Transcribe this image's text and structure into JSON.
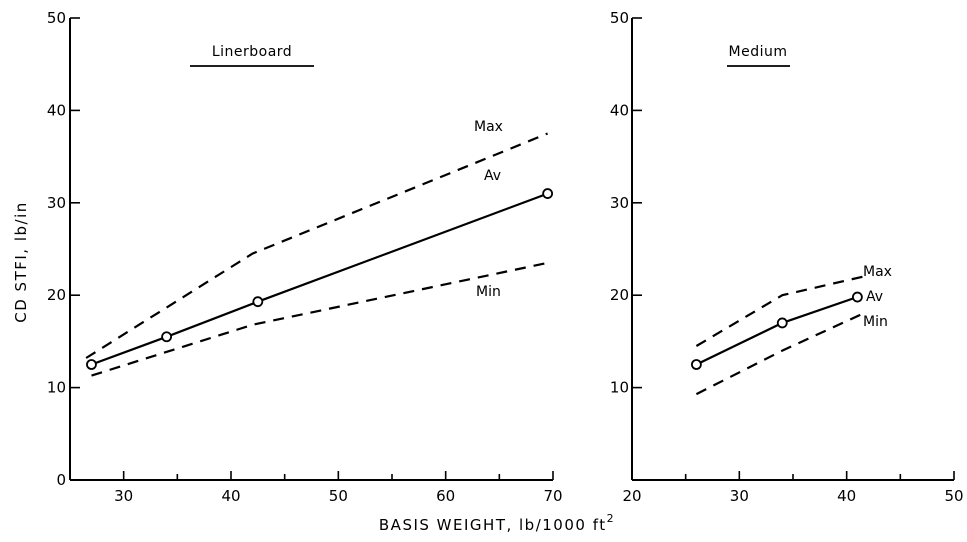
{
  "chart_data": [
    {
      "type": "line",
      "title": "Linerboard",
      "xlabel": "BASIS WEIGHT,  lb/1000 ft²",
      "ylabel": "CD STFI,  lb/in",
      "xlim": [
        25,
        70
      ],
      "ylim": [
        0,
        50
      ],
      "xticks": [
        30,
        40,
        50,
        60,
        70
      ],
      "yticks": [
        0,
        10,
        20,
        30,
        40,
        50
      ],
      "grid": false,
      "series": [
        {
          "name": "Max",
          "style": "dashed",
          "markers": false,
          "x": [
            26.5,
            42,
            69.5
          ],
          "y": [
            13.2,
            24.5,
            37.5
          ]
        },
        {
          "name": "Av",
          "style": "solid",
          "markers": true,
          "x": [
            27,
            34,
            42.5,
            69.5
          ],
          "y": [
            12.5,
            15.5,
            19.3,
            31.0
          ]
        },
        {
          "name": "Min",
          "style": "dashed",
          "markers": false,
          "x": [
            27,
            42,
            69.5
          ],
          "y": [
            11.3,
            16.8,
            23.5
          ]
        }
      ]
    },
    {
      "type": "line",
      "title": "Medium",
      "xlabel": "BASIS WEIGHT,  lb/1000 ft²",
      "ylabel": "",
      "xlim": [
        20,
        50
      ],
      "ylim": [
        0,
        50
      ],
      "xticks": [
        20,
        30,
        40,
        50
      ],
      "yticks": [
        10,
        20,
        30,
        40,
        50
      ],
      "grid": false,
      "series": [
        {
          "name": "Max",
          "style": "dashed",
          "markers": false,
          "x": [
            26,
            34,
            41.5
          ],
          "y": [
            14.5,
            20.0,
            22.0
          ]
        },
        {
          "name": "Av",
          "style": "solid",
          "markers": true,
          "x": [
            26,
            34,
            41
          ],
          "y": [
            12.5,
            17.0,
            19.8
          ]
        },
        {
          "name": "Min",
          "style": "dashed",
          "markers": false,
          "x": [
            26,
            34,
            41.5
          ],
          "y": [
            9.3,
            14.0,
            18.0
          ]
        }
      ]
    }
  ],
  "axis_text": {
    "xlabel_main": "BASIS WEIGHT,  lb/1000 ft",
    "xlabel_sup": "2",
    "ylabel": "CD STFI,  lb/in"
  }
}
